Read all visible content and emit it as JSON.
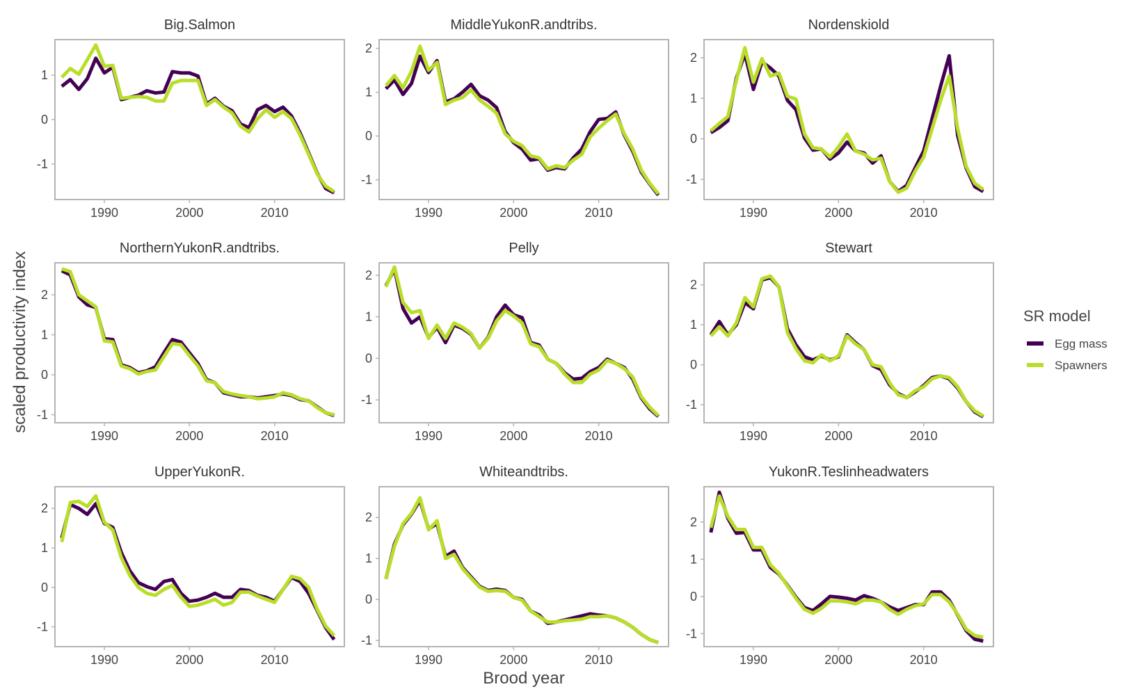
{
  "figure": {
    "xlabel": "Brood year",
    "ylabel": "scaled productivity index",
    "legend_title": "SR model",
    "legend_placement": "right"
  },
  "chart_data": {
    "type": "line",
    "x_tick_labels": [
      "1990",
      "2000",
      "2010"
    ],
    "x": [
      1985,
      1986,
      1987,
      1988,
      1989,
      1990,
      1991,
      1992,
      1993,
      1994,
      1995,
      1996,
      1997,
      1998,
      1999,
      2000,
      2001,
      2002,
      2003,
      2004,
      2005,
      2006,
      2007,
      2008,
      2009,
      2010,
      2011,
      2012,
      2013,
      2014,
      2015,
      2016,
      2017
    ],
    "series_names": [
      "Egg mass",
      "Spawners"
    ],
    "colors": {
      "Egg mass": "#440154",
      "Spawners": "#b8de29",
      "frame": "#b3b3b3"
    },
    "panels": [
      {
        "title": "Big.Salmon",
        "ylim": [
          -1.8,
          1.8
        ],
        "y_ticks": [
          -1,
          0,
          1
        ],
        "y_tick_labels": [
          "-1",
          "0",
          "1"
        ],
        "series": [
          {
            "name": "Egg mass",
            "values": [
              0.75,
              0.9,
              0.68,
              0.92,
              1.38,
              1.05,
              1.18,
              0.45,
              0.5,
              0.55,
              0.65,
              0.6,
              0.62,
              1.08,
              1.05,
              1.05,
              0.98,
              0.35,
              0.48,
              0.3,
              0.2,
              -0.1,
              -0.18,
              0.22,
              0.32,
              0.18,
              0.28,
              0.08,
              -0.3,
              -0.75,
              -1.2,
              -1.55,
              -1.65
            ]
          },
          {
            "name": "Spawners",
            "values": [
              0.95,
              1.15,
              1.02,
              1.35,
              1.68,
              1.2,
              1.22,
              0.48,
              0.5,
              0.52,
              0.5,
              0.42,
              0.42,
              0.82,
              0.88,
              0.88,
              0.88,
              0.32,
              0.45,
              0.28,
              0.15,
              -0.15,
              -0.28,
              0.02,
              0.22,
              0.05,
              0.18,
              0.02,
              -0.35,
              -0.78,
              -1.22,
              -1.5,
              -1.62
            ]
          }
        ]
      },
      {
        "title": "MiddleYukonR.andtribs.",
        "ylim": [
          -1.45,
          2.2
        ],
        "y_ticks": [
          -1,
          0,
          1,
          2
        ],
        "y_tick_labels": [
          "-1",
          "0",
          "1",
          "2"
        ],
        "series": [
          {
            "name": "Egg mass",
            "values": [
              1.08,
              1.28,
              0.95,
              1.2,
              1.82,
              1.45,
              1.72,
              0.78,
              0.85,
              1.0,
              1.18,
              0.92,
              0.82,
              0.65,
              0.1,
              -0.15,
              -0.3,
              -0.55,
              -0.52,
              -0.78,
              -0.72,
              -0.75,
              -0.5,
              -0.3,
              0.1,
              0.38,
              0.4,
              0.55,
              0.02,
              -0.35,
              -0.82,
              -1.1,
              -1.35
            ]
          },
          {
            "name": "Spawners",
            "values": [
              1.15,
              1.38,
              1.1,
              1.48,
              2.05,
              1.5,
              1.68,
              0.72,
              0.82,
              0.88,
              1.05,
              0.82,
              0.68,
              0.52,
              0.05,
              -0.12,
              -0.22,
              -0.45,
              -0.5,
              -0.75,
              -0.68,
              -0.72,
              -0.55,
              -0.42,
              -0.02,
              0.18,
              0.35,
              0.5,
              0.05,
              -0.3,
              -0.78,
              -1.08,
              -1.32
            ]
          }
        ]
      },
      {
        "title": "Nordenskiold",
        "ylim": [
          -1.5,
          2.45
        ],
        "y_ticks": [
          -1,
          0,
          1,
          2
        ],
        "y_tick_labels": [
          "-1",
          "0",
          "1",
          "2"
        ],
        "series": [
          {
            "name": "Egg mass",
            "values": [
              0.15,
              0.28,
              0.45,
              1.5,
              2.1,
              1.22,
              1.9,
              1.75,
              1.55,
              0.95,
              0.72,
              0.02,
              -0.28,
              -0.25,
              -0.5,
              -0.35,
              -0.08,
              -0.3,
              -0.35,
              -0.6,
              -0.42,
              -1.05,
              -1.3,
              -1.15,
              -0.72,
              -0.3,
              0.5,
              1.3,
              2.05,
              0.08,
              -0.72,
              -1.18,
              -1.3
            ]
          },
          {
            "name": "Spawners",
            "values": [
              0.2,
              0.38,
              0.55,
              1.45,
              2.25,
              1.4,
              1.98,
              1.55,
              1.62,
              1.05,
              0.98,
              0.12,
              -0.22,
              -0.25,
              -0.45,
              -0.2,
              0.12,
              -0.3,
              -0.38,
              -0.52,
              -0.48,
              -1.05,
              -1.32,
              -1.22,
              -0.8,
              -0.45,
              0.25,
              0.95,
              1.55,
              0.25,
              -0.68,
              -1.1,
              -1.25
            ]
          }
        ]
      },
      {
        "title": "NorthernYukonR.andtribs.",
        "ylim": [
          -1.2,
          2.8
        ],
        "y_ticks": [
          -1,
          0,
          1,
          2
        ],
        "y_tick_labels": [
          "-1",
          "0",
          "1",
          "2"
        ],
        "series": [
          {
            "name": "Egg mass",
            "values": [
              2.6,
              2.5,
              1.95,
              1.75,
              1.68,
              0.9,
              0.88,
              0.25,
              0.18,
              0.05,
              0.1,
              0.2,
              0.55,
              0.88,
              0.82,
              0.55,
              0.28,
              -0.12,
              -0.2,
              -0.45,
              -0.5,
              -0.55,
              -0.55,
              -0.58,
              -0.55,
              -0.52,
              -0.48,
              -0.52,
              -0.62,
              -0.65,
              -0.8,
              -0.95,
              -1.02
            ]
          },
          {
            "name": "Spawners",
            "values": [
              2.65,
              2.58,
              2.0,
              1.85,
              1.7,
              0.85,
              0.82,
              0.22,
              0.15,
              0.02,
              0.08,
              0.12,
              0.45,
              0.78,
              0.75,
              0.48,
              0.22,
              -0.15,
              -0.2,
              -0.42,
              -0.48,
              -0.52,
              -0.55,
              -0.6,
              -0.58,
              -0.55,
              -0.45,
              -0.5,
              -0.6,
              -0.65,
              -0.82,
              -0.95,
              -1.0
            ]
          }
        ]
      },
      {
        "title": "Pelly",
        "ylim": [
          -1.55,
          2.3
        ],
        "y_ticks": [
          -1,
          0,
          1,
          2
        ],
        "y_tick_labels": [
          "-1",
          "0",
          "1",
          "2"
        ],
        "series": [
          {
            "name": "Egg mass",
            "values": [
              1.75,
              2.15,
              1.2,
              0.85,
              1.0,
              0.5,
              0.75,
              0.38,
              0.8,
              0.72,
              0.58,
              0.25,
              0.5,
              1.0,
              1.28,
              1.05,
              0.98,
              0.38,
              0.32,
              -0.02,
              -0.12,
              -0.35,
              -0.5,
              -0.48,
              -0.32,
              -0.22,
              -0.02,
              -0.12,
              -0.22,
              -0.5,
              -0.95,
              -1.22,
              -1.4
            ]
          },
          {
            "name": "Spawners",
            "values": [
              1.72,
              2.2,
              1.35,
              1.1,
              1.15,
              0.48,
              0.8,
              0.48,
              0.85,
              0.75,
              0.6,
              0.25,
              0.48,
              0.9,
              1.15,
              1.02,
              0.85,
              0.35,
              0.28,
              -0.02,
              -0.12,
              -0.38,
              -0.58,
              -0.58,
              -0.38,
              -0.28,
              -0.05,
              -0.12,
              -0.25,
              -0.45,
              -0.92,
              -1.18,
              -1.38
            ]
          }
        ]
      },
      {
        "title": "Stewart",
        "ylim": [
          -1.45,
          2.55
        ],
        "y_ticks": [
          -1,
          0,
          1,
          2
        ],
        "y_tick_labels": [
          "-1",
          "0",
          "1",
          "2"
        ],
        "series": [
          {
            "name": "Egg mass",
            "values": [
              0.75,
              1.08,
              0.75,
              1.0,
              1.55,
              1.4,
              2.12,
              2.18,
              1.95,
              0.9,
              0.5,
              0.2,
              0.12,
              0.22,
              0.12,
              0.2,
              0.75,
              0.55,
              0.38,
              -0.02,
              -0.12,
              -0.5,
              -0.72,
              -0.82,
              -0.68,
              -0.52,
              -0.32,
              -0.28,
              -0.35,
              -0.58,
              -0.92,
              -1.18,
              -1.3
            ]
          },
          {
            "name": "Spawners",
            "values": [
              0.72,
              0.95,
              0.72,
              1.05,
              1.68,
              1.45,
              2.15,
              2.22,
              1.95,
              0.8,
              0.4,
              0.1,
              0.05,
              0.25,
              0.1,
              0.22,
              0.72,
              0.52,
              0.38,
              0.0,
              -0.05,
              -0.45,
              -0.75,
              -0.82,
              -0.65,
              -0.55,
              -0.35,
              -0.28,
              -0.32,
              -0.55,
              -0.92,
              -1.15,
              -1.28
            ]
          }
        ]
      },
      {
        "title": "UpperYukonR.",
        "ylim": [
          -1.5,
          2.55
        ],
        "y_ticks": [
          -1,
          0,
          1,
          2
        ],
        "y_tick_labels": [
          "-1",
          "0",
          "1",
          "2"
        ],
        "series": [
          {
            "name": "Egg mass",
            "values": [
              1.25,
              2.1,
              2.0,
              1.85,
              2.12,
              1.62,
              1.52,
              0.88,
              0.42,
              0.12,
              0.02,
              -0.05,
              0.15,
              0.2,
              -0.15,
              -0.35,
              -0.32,
              -0.25,
              -0.15,
              -0.25,
              -0.25,
              -0.05,
              -0.08,
              -0.2,
              -0.25,
              -0.35,
              -0.05,
              0.25,
              0.15,
              -0.15,
              -0.58,
              -1.02,
              -1.32
            ]
          },
          {
            "name": "Spawners",
            "values": [
              1.15,
              2.15,
              2.18,
              2.05,
              2.32,
              1.65,
              1.45,
              0.75,
              0.3,
              0.0,
              -0.15,
              -0.2,
              -0.05,
              0.05,
              -0.25,
              -0.48,
              -0.45,
              -0.38,
              -0.3,
              -0.45,
              -0.38,
              -0.12,
              -0.12,
              -0.22,
              -0.3,
              -0.38,
              -0.05,
              0.28,
              0.22,
              0.0,
              -0.55,
              -0.98,
              -1.22
            ]
          }
        ]
      },
      {
        "title": "Whiteandtribs.",
        "ylim": [
          -1.15,
          2.75
        ],
        "y_ticks": [
          -1,
          0,
          1,
          2
        ],
        "y_tick_labels": [
          "-1",
          "0",
          "1",
          "2"
        ],
        "series": [
          {
            "name": "Egg mass",
            "values": [
              0.5,
              1.35,
              1.82,
              2.08,
              2.42,
              1.72,
              1.85,
              1.05,
              1.18,
              0.78,
              0.55,
              0.32,
              0.22,
              0.25,
              0.22,
              0.05,
              0.0,
              -0.28,
              -0.38,
              -0.58,
              -0.55,
              -0.5,
              -0.45,
              -0.4,
              -0.35,
              -0.38,
              -0.4,
              -0.45,
              -0.55,
              -0.68,
              -0.85,
              -0.98,
              -1.05
            ]
          },
          {
            "name": "Spawners",
            "values": [
              0.5,
              1.3,
              1.85,
              2.1,
              2.48,
              1.7,
              1.92,
              1.0,
              1.1,
              0.75,
              0.52,
              0.3,
              0.2,
              0.22,
              0.2,
              0.05,
              -0.02,
              -0.28,
              -0.42,
              -0.55,
              -0.55,
              -0.52,
              -0.5,
              -0.48,
              -0.42,
              -0.42,
              -0.4,
              -0.45,
              -0.55,
              -0.68,
              -0.85,
              -0.98,
              -1.05
            ]
          }
        ]
      },
      {
        "title": "YukonR.Teslinheadwaters",
        "ylim": [
          -1.35,
          2.95
        ],
        "y_ticks": [
          -1,
          0,
          1,
          2
        ],
        "y_tick_labels": [
          "-1",
          "0",
          "1",
          "2"
        ],
        "series": [
          {
            "name": "Egg mass",
            "values": [
              1.72,
              2.8,
              2.1,
              1.7,
              1.72,
              1.25,
              1.25,
              0.78,
              0.6,
              0.3,
              -0.02,
              -0.3,
              -0.38,
              -0.2,
              0.0,
              -0.02,
              -0.05,
              -0.1,
              0.02,
              -0.05,
              -0.15,
              -0.28,
              -0.38,
              -0.3,
              -0.22,
              -0.22,
              0.12,
              0.12,
              -0.1,
              -0.5,
              -0.92,
              -1.15,
              -1.2
            ]
          },
          {
            "name": "Spawners",
            "values": [
              1.85,
              2.7,
              2.15,
              1.8,
              1.8,
              1.32,
              1.32,
              0.85,
              0.62,
              0.28,
              -0.05,
              -0.35,
              -0.45,
              -0.32,
              -0.12,
              -0.12,
              -0.15,
              -0.2,
              -0.1,
              -0.1,
              -0.15,
              -0.35,
              -0.48,
              -0.35,
              -0.25,
              -0.2,
              0.05,
              0.05,
              -0.15,
              -0.48,
              -0.88,
              -1.05,
              -1.1
            ]
          }
        ]
      }
    ]
  }
}
